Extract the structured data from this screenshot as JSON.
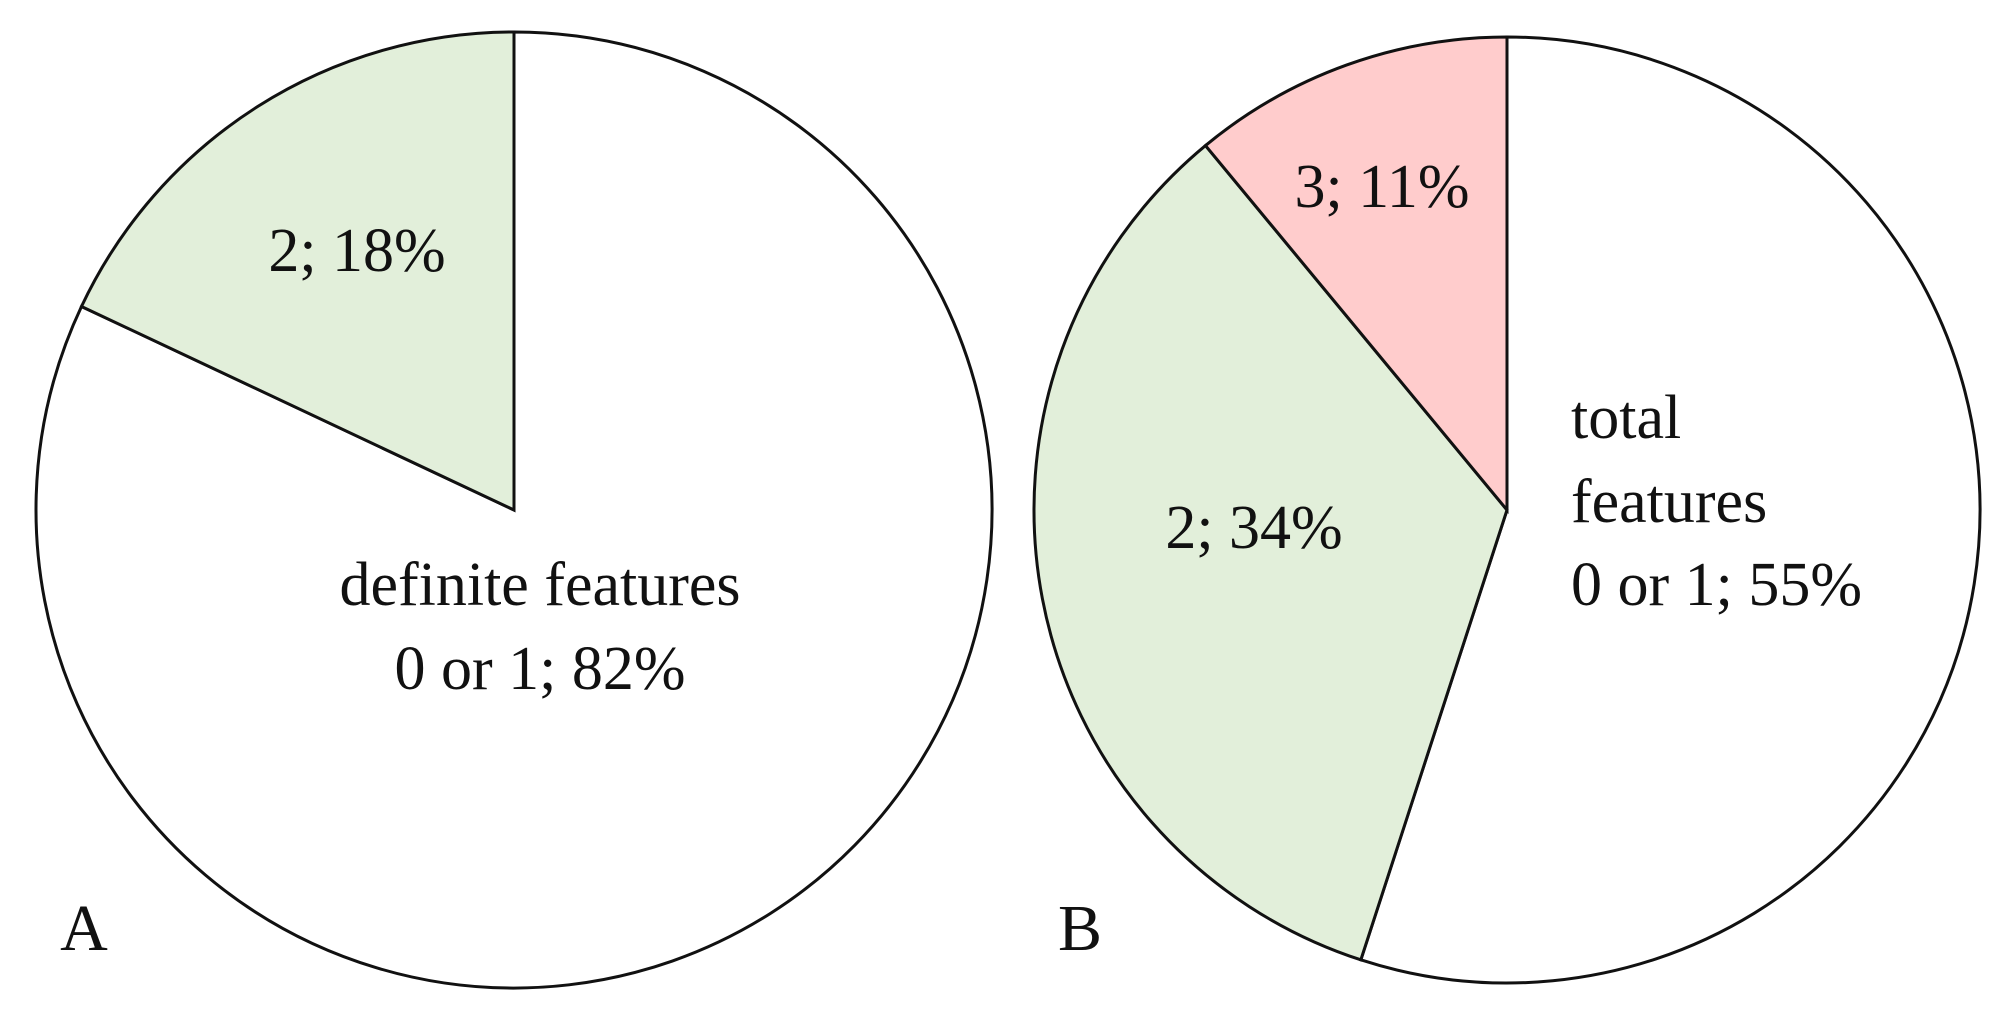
{
  "chart_data": [
    {
      "type": "pie",
      "panel": "A",
      "annotation": "definite features",
      "categories": [
        "0 or 1",
        "2"
      ],
      "values": [
        82,
        18
      ],
      "value_labels": [
        "0 or 1; 82%",
        "2; 18%"
      ],
      "colors": [
        "#ffffff",
        "#e2efda"
      ]
    },
    {
      "type": "pie",
      "panel": "B",
      "annotation": "total features",
      "categories": [
        "0 or 1",
        "2",
        "3"
      ],
      "values": [
        55,
        34,
        11
      ],
      "value_labels": [
        "0 or 1; 55%",
        "2; 34%",
        "3; 11%"
      ],
      "colors": [
        "#ffffff",
        "#e2efda",
        "#ffcccc"
      ]
    }
  ]
}
